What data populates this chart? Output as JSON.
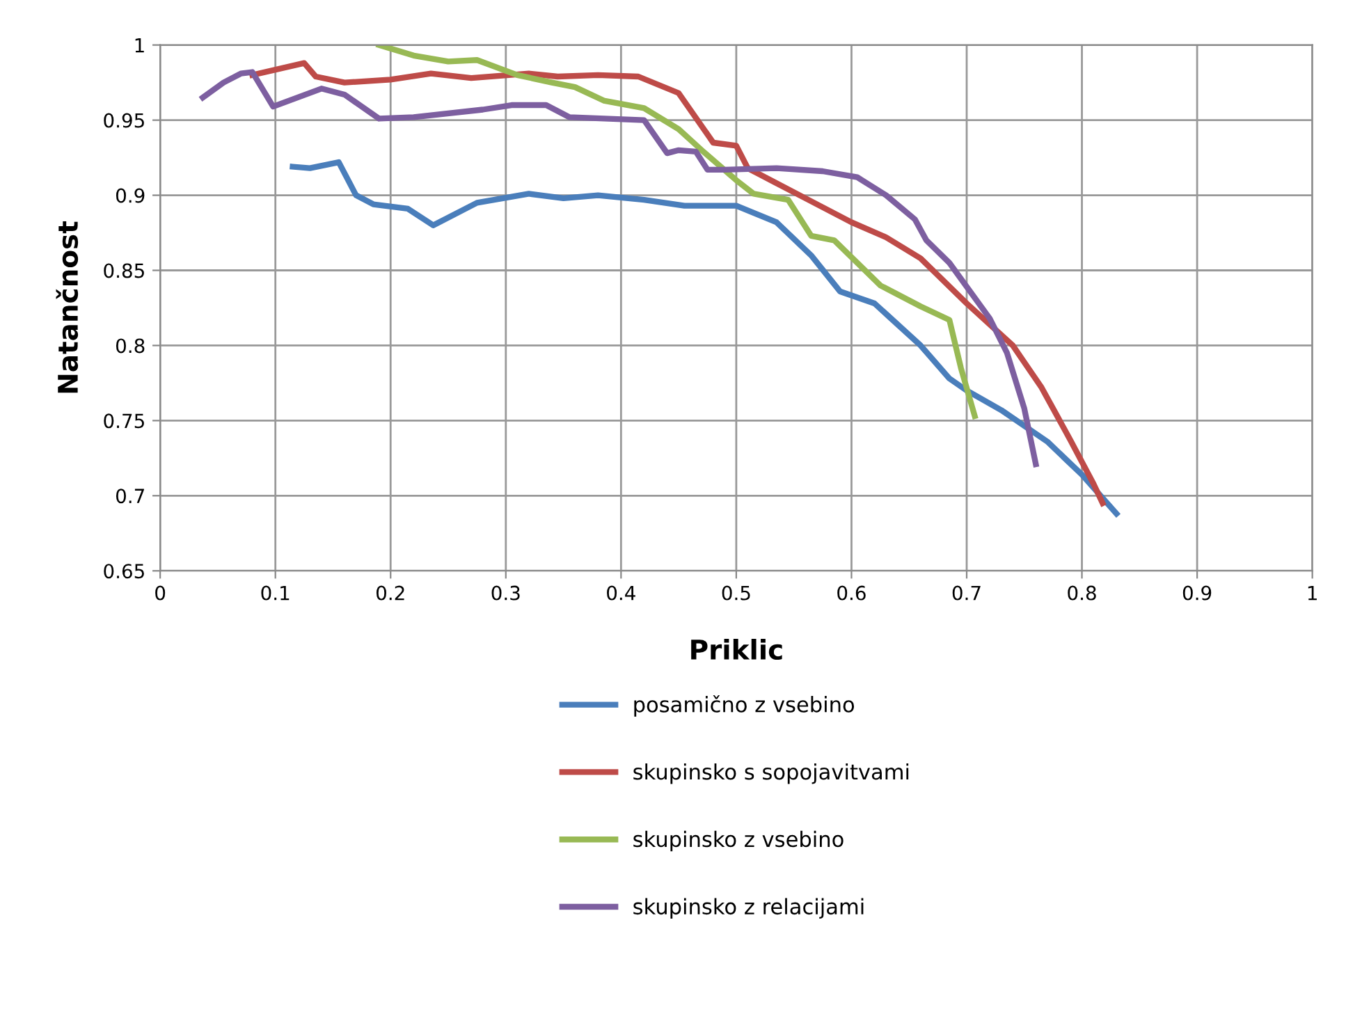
{
  "chart_data": {
    "type": "line",
    "xlabel": "Priklic",
    "ylabel": "Natančnost",
    "xlim": [
      0,
      1
    ],
    "xticks": [
      0,
      0.1,
      0.2,
      0.3,
      0.4,
      0.5,
      0.6,
      0.7,
      0.8,
      0.9,
      1
    ],
    "ylim": [
      0.65,
      1
    ],
    "yticks": [
      0.65,
      0.7,
      0.75,
      0.8,
      0.85,
      0.9,
      0.95,
      1
    ],
    "grid": true,
    "legend": "bottom",
    "marker": "none",
    "line_style": "solid",
    "series": [
      {
        "name": "posamično z vsebino",
        "color": "#4a7ebb",
        "x": [
          0.115,
          0.13,
          0.155,
          0.17,
          0.185,
          0.215,
          0.237,
          0.275,
          0.32,
          0.35,
          0.38,
          0.42,
          0.455,
          0.5,
          0.535,
          0.565,
          0.59,
          0.62,
          0.66,
          0.685,
          0.7,
          0.73,
          0.77,
          0.8,
          0.83
        ],
        "values": [
          0.919,
          0.918,
          0.922,
          0.9,
          0.894,
          0.891,
          0.88,
          0.895,
          0.901,
          0.898,
          0.9,
          0.897,
          0.893,
          0.893,
          0.882,
          0.86,
          0.836,
          0.828,
          0.8,
          0.778,
          0.77,
          0.757,
          0.736,
          0.714,
          0.688
        ]
      },
      {
        "name": "skupinsko s sopojavitvami",
        "color": "#be4b48",
        "x": [
          0.08,
          0.125,
          0.135,
          0.16,
          0.2,
          0.235,
          0.27,
          0.32,
          0.345,
          0.38,
          0.415,
          0.45,
          0.48,
          0.5,
          0.51,
          0.53,
          0.56,
          0.6,
          0.63,
          0.66,
          0.7,
          0.74,
          0.765,
          0.79,
          0.81,
          0.818
        ],
        "values": [
          0.98,
          0.988,
          0.979,
          0.975,
          0.977,
          0.981,
          0.978,
          0.981,
          0.979,
          0.98,
          0.979,
          0.968,
          0.935,
          0.933,
          0.918,
          0.91,
          0.898,
          0.882,
          0.872,
          0.858,
          0.828,
          0.8,
          0.772,
          0.737,
          0.708,
          0.695
        ]
      },
      {
        "name": "skupinsko z vsebino",
        "color": "#98b954",
        "x": [
          0.19,
          0.22,
          0.25,
          0.275,
          0.31,
          0.34,
          0.36,
          0.385,
          0.42,
          0.45,
          0.47,
          0.5,
          0.515,
          0.545,
          0.565,
          0.585,
          0.625,
          0.66,
          0.685,
          0.695,
          0.707
        ],
        "values": [
          1.0,
          0.993,
          0.989,
          0.99,
          0.98,
          0.975,
          0.972,
          0.963,
          0.958,
          0.944,
          0.93,
          0.91,
          0.901,
          0.897,
          0.873,
          0.87,
          0.84,
          0.826,
          0.817,
          0.785,
          0.753
        ]
      },
      {
        "name": "skupinsko z relacijami",
        "color": "#7d5fa0",
        "x": [
          0.037,
          0.055,
          0.07,
          0.08,
          0.098,
          0.14,
          0.16,
          0.19,
          0.22,
          0.28,
          0.305,
          0.335,
          0.355,
          0.42,
          0.44,
          0.45,
          0.465,
          0.475,
          0.49,
          0.535,
          0.575,
          0.605,
          0.63,
          0.655,
          0.665,
          0.685,
          0.72,
          0.735,
          0.75,
          0.76
        ],
        "values": [
          0.965,
          0.975,
          0.981,
          0.982,
          0.959,
          0.971,
          0.967,
          0.951,
          0.952,
          0.957,
          0.96,
          0.96,
          0.952,
          0.95,
          0.928,
          0.93,
          0.929,
          0.917,
          0.917,
          0.918,
          0.916,
          0.912,
          0.9,
          0.884,
          0.87,
          0.855,
          0.818,
          0.795,
          0.758,
          0.721
        ]
      }
    ]
  }
}
